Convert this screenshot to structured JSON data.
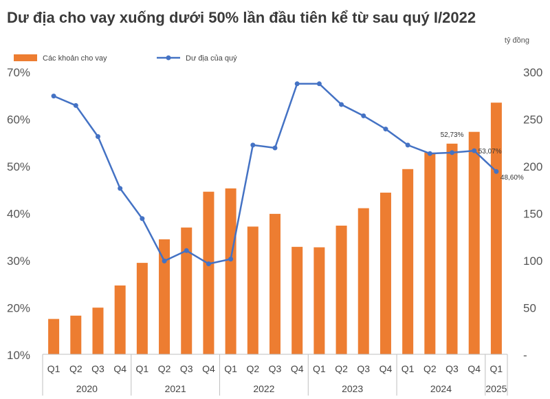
{
  "chart_data": {
    "type": "bar-line",
    "title": "Dư địa cho vay xuống dưới 50% lần đầu tiên kể từ sau quý I/2022",
    "unit_right": "tỷ đồng",
    "legend": [
      "Các khoản cho vay",
      "Dư địa của quý"
    ],
    "left_axis": {
      "range": [
        10,
        70
      ],
      "ticks": [
        "10%",
        "20%",
        "30%",
        "40%",
        "50%",
        "60%",
        "70%"
      ]
    },
    "right_axis": {
      "range": [
        0,
        300
      ],
      "ticks": [
        "-",
        "50",
        "100",
        "150",
        "200",
        "250",
        "300"
      ]
    },
    "quarters": [
      "Q1",
      "Q2",
      "Q3",
      "Q4",
      "Q1",
      "Q2",
      "Q3",
      "Q4",
      "Q1",
      "Q2",
      "Q3",
      "Q4",
      "Q1",
      "Q2",
      "Q3",
      "Q4",
      "Q1",
      "Q2",
      "Q3",
      "Q4",
      "Q1"
    ],
    "years": [
      {
        "label": "2020",
        "start": 0,
        "count": 4
      },
      {
        "label": "2021",
        "start": 4,
        "count": 4
      },
      {
        "label": "2022",
        "start": 8,
        "count": 4
      },
      {
        "label": "2023",
        "start": 12,
        "count": 4
      },
      {
        "label": "2024",
        "start": 16,
        "count": 4
      },
      {
        "label": "2025",
        "start": 20,
        "count": 1
      }
    ],
    "series": [
      {
        "name": "Các khoản cho vay",
        "kind": "bar",
        "axis": "left",
        "color": "#ED7D31",
        "values": [
          17.5,
          18.2,
          19.9,
          24.6,
          29.4,
          34.4,
          36.9,
          44.5,
          45.2,
          37.1,
          39.8,
          32.8,
          32.7,
          37.3,
          41.0,
          44.3,
          49.3,
          52.8,
          54.7,
          57.2,
          63.4
        ]
      },
      {
        "name": "Dư địa của quý",
        "kind": "line",
        "axis": "right",
        "color": "#4472C4",
        "values": [
          274,
          264,
          231,
          176,
          144,
          99,
          110,
          96,
          101,
          222,
          219,
          287,
          287,
          265,
          253,
          239,
          222,
          213,
          214,
          216,
          194
        ]
      }
    ],
    "annotations": [
      {
        "index": 18,
        "text": "52,73%",
        "anchor": "bar-top"
      },
      {
        "index": 19,
        "text": "53,07%",
        "anchor": "line-point"
      },
      {
        "index": 20,
        "text": "48,60%",
        "anchor": "line-point"
      }
    ]
  }
}
